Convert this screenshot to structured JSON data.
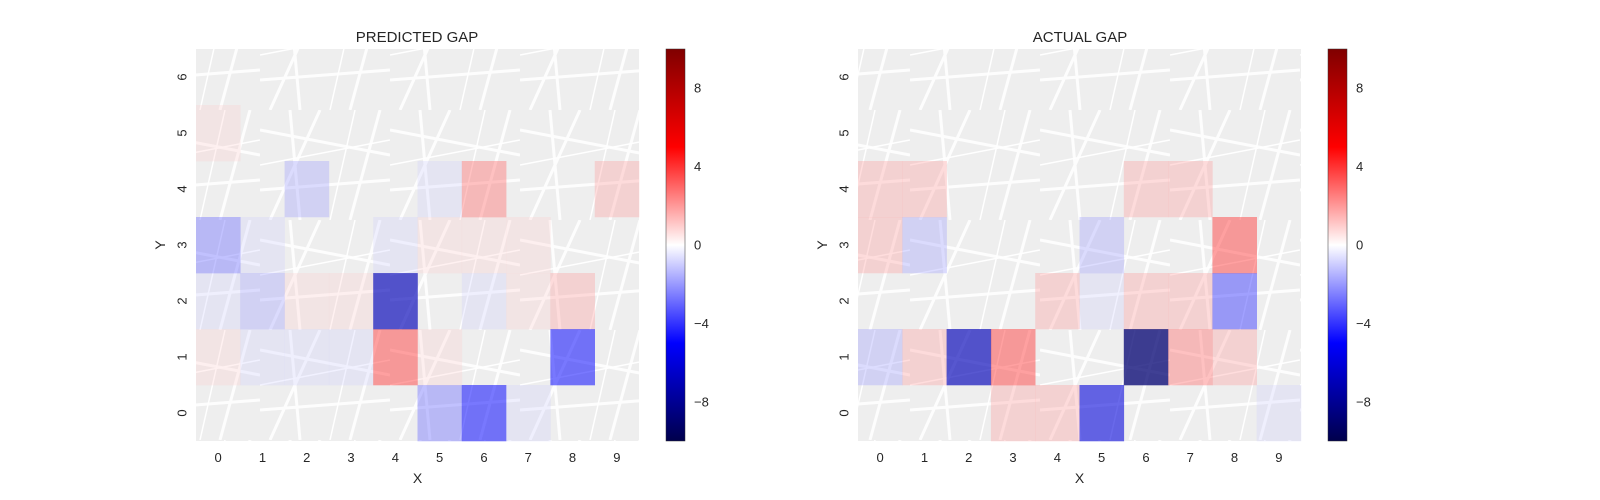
{
  "chart_data": [
    {
      "type": "heatmap",
      "title": "PREDICTED GAP",
      "xlabel": "X",
      "ylabel": "Y",
      "x_ticks": [
        "0",
        "1",
        "2",
        "3",
        "4",
        "5",
        "6",
        "7",
        "8",
        "9"
      ],
      "y_ticks": [
        "0",
        "1",
        "2",
        "3",
        "4",
        "5",
        "6"
      ],
      "grid": false,
      "background": "street map",
      "cmap": "seismic",
      "vmin": -10,
      "vmax": 10,
      "z_rows_from_y0": [
        [
          0,
          0,
          0,
          0,
          0,
          -3,
          -5,
          -1,
          0,
          0
        ],
        [
          1,
          -1,
          -1,
          -1,
          4,
          1,
          0,
          0,
          -5,
          0
        ],
        [
          -1,
          -2,
          1,
          1,
          -7,
          0,
          -1,
          1,
          2,
          0
        ],
        [
          -3,
          -1,
          0,
          0,
          -1,
          1,
          1,
          1,
          0,
          0
        ],
        [
          0,
          0,
          -2,
          0,
          0,
          -1,
          3,
          0,
          0,
          2
        ],
        [
          1,
          0,
          0,
          0,
          0,
          0,
          0,
          0,
          0,
          0
        ],
        [
          0,
          0,
          0,
          0,
          0,
          0,
          0,
          0,
          0,
          0
        ]
      ]
    },
    {
      "type": "heatmap",
      "title": "ACTUAL GAP",
      "xlabel": "X",
      "ylabel": "Y",
      "x_ticks": [
        "0",
        "1",
        "2",
        "3",
        "4",
        "5",
        "6",
        "7",
        "8",
        "9"
      ],
      "y_ticks": [
        "0",
        "1",
        "2",
        "3",
        "4",
        "5",
        "6"
      ],
      "grid": false,
      "background": "street map",
      "cmap": "seismic",
      "vmin": -10,
      "vmax": 10,
      "z_rows_from_y0": [
        [
          0,
          0,
          0,
          2,
          2,
          -6,
          0,
          0,
          0,
          -1
        ],
        [
          -2,
          2,
          -7,
          4,
          0,
          0,
          -9,
          3,
          2,
          0
        ],
        [
          0,
          0,
          0,
          0,
          2,
          -1,
          2,
          2,
          -4,
          0
        ],
        [
          2,
          -2,
          0,
          0,
          0,
          -2,
          0,
          0,
          4,
          0
        ],
        [
          2,
          2,
          0,
          0,
          0,
          0,
          2,
          2,
          0,
          0
        ],
        [
          0,
          0,
          0,
          0,
          0,
          0,
          0,
          0,
          0,
          0
        ],
        [
          0,
          0,
          0,
          0,
          0,
          0,
          0,
          0,
          0,
          0
        ]
      ]
    }
  ],
  "colorbar": {
    "ticks": [
      {
        "value": 8,
        "label": "8"
      },
      {
        "value": 4,
        "label": "4"
      },
      {
        "value": 0,
        "label": "0"
      },
      {
        "value": -4,
        "label": "−4"
      },
      {
        "value": -8,
        "label": "−8"
      }
    ],
    "min": -10,
    "max": 10
  }
}
